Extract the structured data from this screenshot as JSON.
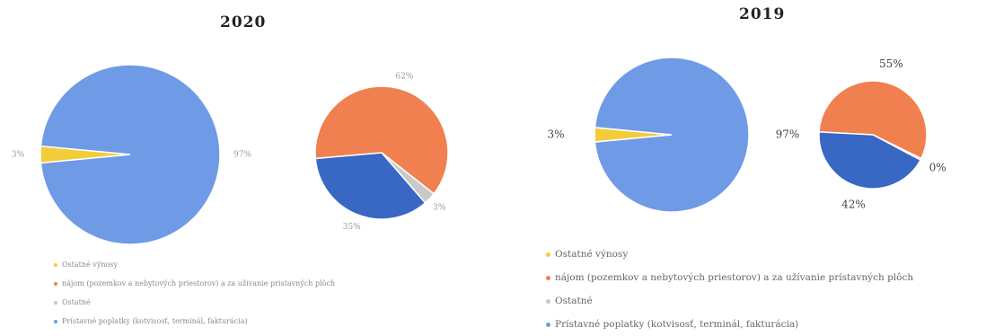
{
  "colors": {
    "ostatne_vynosy": "#f3cc3a",
    "najom": "#f0804f",
    "ostatne": "#c9c9c9",
    "pristavne": "#6f9ae6",
    "pristavne_dark": "#3867c4"
  },
  "chart_data": [
    {
      "type": "pie",
      "title": "2020",
      "main_pie": {
        "slices": [
          {
            "name": "Ostatné výnosy",
            "value": 3,
            "label": "3%"
          },
          {
            "name": "Prístavné poplatky (kotvisosť, terminál, fakturácia)",
            "value": 97,
            "label": "97%"
          }
        ]
      },
      "sub_pie": {
        "slices": [
          {
            "name": "nájom (pozemkov a nebytových priestorov) a za užívanie prístavných plôch",
            "value": 62,
            "label": "62%"
          },
          {
            "name": "Ostatné",
            "value": 3,
            "label": "3%"
          },
          {
            "name": "Prístavné poplatky",
            "value": 35,
            "label": "35%"
          }
        ]
      },
      "legend": [
        {
          "label": "Ostatné výnosy",
          "color_key": "ostatne_vynosy"
        },
        {
          "label": "nájom (pozemkov a nebytových priestorov) a za užívanie prístavných plôch",
          "color_key": "najom"
        },
        {
          "label": "Ostatné",
          "color_key": "ostatne"
        },
        {
          "label": "Prístavné poplatky (kotvisosť, terminál, fakturácia)",
          "color_key": "pristavne"
        }
      ]
    },
    {
      "type": "pie",
      "title": "2019",
      "main_pie": {
        "slices": [
          {
            "name": "Ostatné výnosy",
            "value": 3,
            "label": "3%"
          },
          {
            "name": "Prístavné poplatky (kotvisosť, terminál, fakturácia)",
            "value": 97,
            "label": "97%"
          }
        ]
      },
      "sub_pie": {
        "slices": [
          {
            "name": "nájom (pozemkov a nebytových priestorov) a za užívanie prístavných plôch",
            "value": 55,
            "label": "55%"
          },
          {
            "name": "Ostatné",
            "value": 0.5,
            "label": "0%"
          },
          {
            "name": "Prístavné poplatky",
            "value": 42,
            "label": "42%"
          }
        ]
      },
      "legend": [
        {
          "label": "Ostatné výnosy",
          "color_key": "ostatne_vynosy"
        },
        {
          "label": "nájom (pozemkov a nebytových priestorov) a za užívanie prístavných plôch",
          "color_key": "najom"
        },
        {
          "label": "Ostatné",
          "color_key": "ostatne"
        },
        {
          "label": "Prístavné poplatky (kotvisosť, terminál, fakturácia)",
          "color_key": "pristavne"
        }
      ]
    }
  ]
}
